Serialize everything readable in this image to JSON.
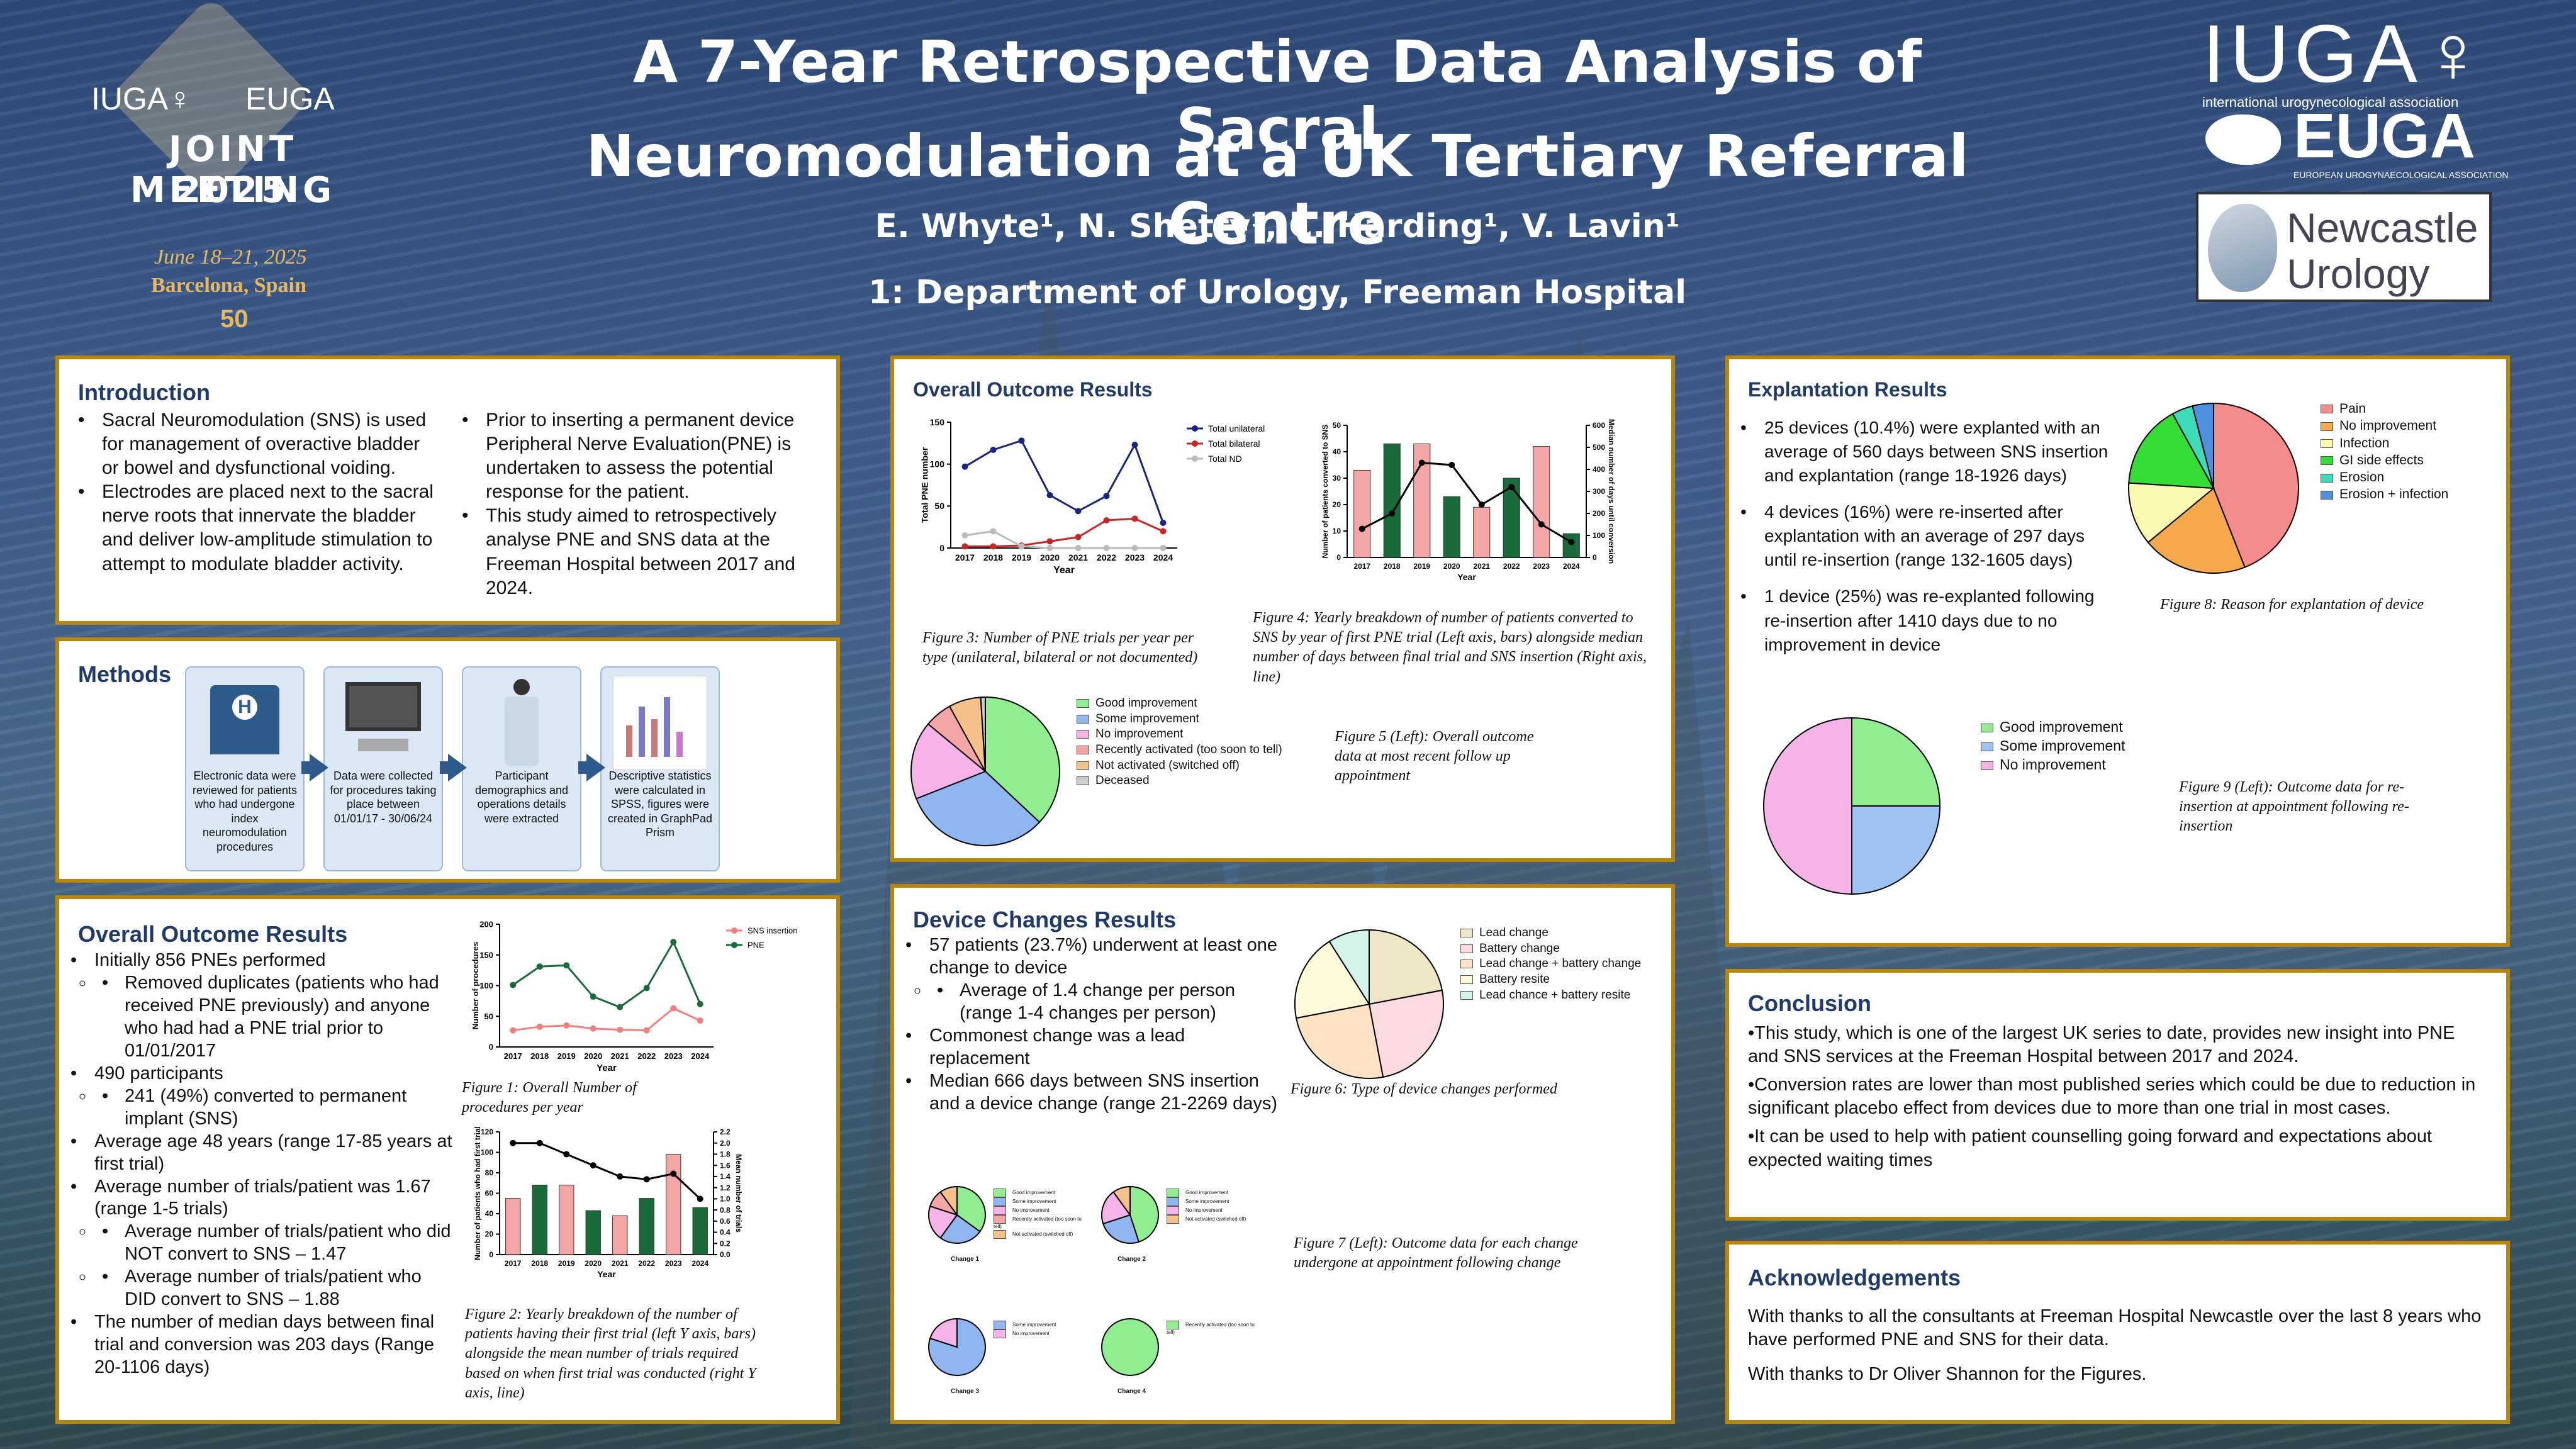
{
  "header": {
    "title_line1": "A 7-Year Retrospective Data Analysis of Sacral",
    "title_line2": "Neuromodulation at a UK Tertiary Referral Centre",
    "authors": "E. Whyte¹, N. Shetty¹, C. Harding¹, V. Lavin¹",
    "affiliation": "1: Department of Urology, Freeman Hospital"
  },
  "logo_left": {
    "org1": "IUGA♀",
    "org2": "EUGA",
    "line1": "JOINT MEETING",
    "line2": "2025",
    "date": "June 18–21, 2025",
    "place": "Barcelona, Spain",
    "anniv": "50"
  },
  "logo_right": {
    "iuga": "IUGA♀",
    "iuga_sub": "international urogynecological association",
    "euga": "EUGA",
    "euga_sub": "EUROPEAN UROGYNAECOLOGICAL ASSOCIATION",
    "newcastle1": "Newcastle",
    "newcastle2": "Urology"
  },
  "introduction": {
    "heading": "Introduction",
    "items": [
      "Sacral Neuromodulation (SNS) is used for management of overactive bladder or bowel and dysfunctional voiding.",
      "Electrodes are placed next to the sacral nerve roots that innervate the bladder and deliver low-amplitude stimulation to attempt to modulate bladder activity.",
      "Prior to inserting a permanent device Peripheral Nerve Evaluation(PNE) is undertaken to assess the potential response for the patient.",
      "This study aimed to retrospectively analyse PNE and SNS data at the Freeman Hospital between 2017 and 2024."
    ]
  },
  "methods": {
    "heading": "Methods",
    "steps": [
      "Electronic data were reviewed for patients who had undergone index neuromodulation procedures",
      "Data were collected for procedures taking place between 01/01/17 - 30/06/24",
      "Participant demographics and operations details were extracted",
      "Descriptive statistics were calculated in SPSS, figures were created in GraphPad Prism"
    ]
  },
  "overall_left": {
    "heading": "Overall Outcome Results",
    "items": [
      {
        "t": "Initially 856 PNEs performed",
        "sub": [
          "Removed duplicates (patients who had received PNE previously) and anyone who had had a PNE trial prior to 01/01/2017"
        ]
      },
      {
        "t": "490 participants",
        "sub": [
          "241 (49%) converted to permanent implant (SNS)"
        ]
      },
      {
        "t": "Average age 48 years (range 17-85 years at first trial)",
        "sub": []
      },
      {
        "t": "Average number of trials/patient was 1.67 (range 1-5 trials)",
        "sub": [
          "Average number of trials/patient who did NOT convert to SNS – 1.47",
          "Average number of trials/patient who DID convert to SNS – 1.88"
        ]
      },
      {
        "t": "The number of median days between final trial and conversion was 203 days (Range 20-1106 days)",
        "sub": []
      }
    ],
    "fig1_caption": "Figure 1: Overall Number of procedures per year",
    "fig2_caption": "Figure 2: Yearly breakdown of the number of patients having their first trial (left Y axis, bars) alongside the mean number of trials required based on when first trial was conducted (right Y axis, line)"
  },
  "overall_mid": {
    "heading": "Overall Outcome Results",
    "fig3_caption": "Figure 3: Number of PNE trials per year per type (unilateral, bilateral or not documented)",
    "fig4_caption": "Figure 4: Yearly breakdown of number of patients converted to SNS by year of first PNE trial (Left axis, bars) alongside median number of days between final trial and SNS insertion (Right axis, line)",
    "fig5_caption": "Figure 5 (Left): Overall outcome data at most recent follow up appointment"
  },
  "device": {
    "heading": "Device Changes Results",
    "items": [
      {
        "t": "57 patients (23.7%) underwent at least one change to device",
        "sub": [
          "Average of 1.4 change per person (range 1-4 changes per person)"
        ]
      },
      {
        "t": "Commonest change was a lead replacement",
        "sub": []
      },
      {
        "t": "Median 666 days between SNS insertion and a device change (range 21-2269 days)",
        "sub": []
      }
    ],
    "fig6_caption": "Figure 6: Type of device changes performed",
    "fig7_caption": "Figure 7 (Left): Outcome data for each change undergone at appointment following change",
    "change_labels": [
      "Change 1",
      "Change 2",
      "Change 3",
      "Change 4"
    ]
  },
  "explant": {
    "heading": "Explantation Results",
    "items": [
      "25 devices (10.4%) were explanted with an average of 560 days between SNS insertion and explantation (range 18-1926 days)",
      "4 devices (16%) were re-inserted after explantation with an average of 297 days until re-insertion (range 132-1605 days)",
      "1 device (25%) was re-explanted following re-insertion after 1410 days due to no improvement in device"
    ],
    "fig8_caption": "Figure 8: Reason for explantation of device",
    "fig9_caption": "Figure 9 (Left): Outcome data for re-insertion at appointment following re-insertion"
  },
  "conclusion": {
    "heading": "Conclusion",
    "items": [
      "•This study, which is one of the largest UK series to date, provides new insight into PNE and SNS services at the Freeman Hospital between 2017 and 2024.",
      "•Conversion rates are lower than most published series which could be due to reduction in significant placebo effect from devices due to more than one trial in most cases.",
      "•It can be used to help with patient counselling going forward and expectations about expected waiting times"
    ]
  },
  "ack": {
    "heading": "Acknowledgements",
    "items": [
      "With thanks to all the consultants at Freeman Hospital Newcastle over the last 8 years who have performed PNE and SNS for their data.",
      "With thanks to Dr Oliver Shannon for the Figures."
    ]
  },
  "colors": {
    "border": "#b8860b",
    "heading": "#1f3a6b",
    "bg": "#3f5d8c"
  },
  "chart_data": [
    {
      "id": "fig1",
      "type": "line",
      "x": [
        "2017",
        "2018",
        "2019",
        "2020",
        "2021",
        "2022",
        "2023",
        "2024"
      ],
      "series": [
        {
          "name": "SNS insertion",
          "values": [
            27,
            33,
            35,
            30,
            28,
            27,
            63,
            43
          ],
          "color": "#f08080"
        },
        {
          "name": "PNE",
          "values": [
            101,
            131,
            133,
            82,
            65,
            96,
            171,
            70
          ],
          "color": "#1a6b3a"
        }
      ],
      "xlabel": "Year",
      "ylabel": "Number of procedures",
      "ylim": [
        0,
        200
      ],
      "yticks": [
        0,
        50,
        100,
        150,
        200
      ]
    },
    {
      "id": "fig2",
      "type": "bar",
      "categories": [
        "2017",
        "2018",
        "2019",
        "2020",
        "2021",
        "2022",
        "2023",
        "2024"
      ],
      "values": [
        55,
        68,
        68,
        43,
        38,
        55,
        98,
        46
      ],
      "line": [
        2.0,
        2.0,
        1.8,
        1.6,
        1.4,
        1.35,
        1.45,
        1.0
      ],
      "xlabel": "Year",
      "ylabel": "Number of patients who had first trial",
      "y2label": "Mean number of trials",
      "ylim": [
        0,
        120
      ],
      "yticks": [
        0,
        20,
        40,
        60,
        80,
        100,
        120
      ],
      "y2lim": [
        0,
        2.2
      ],
      "y2ticks": [
        "0.0",
        "0.2",
        "0.4",
        "0.6",
        "0.8",
        "1.0",
        "1.2",
        "1.4",
        "1.6",
        "1.8",
        "2.0",
        "2.2"
      ]
    },
    {
      "id": "fig3",
      "type": "line",
      "x": [
        "2017",
        "2018",
        "2019",
        "2020",
        "2021",
        "2022",
        "2023",
        "2024"
      ],
      "series": [
        {
          "name": "Total unilateral",
          "values": [
            97,
            117,
            128,
            63,
            44,
            62,
            123,
            30
          ],
          "color": "#1a237e"
        },
        {
          "name": "Total bilateral",
          "values": [
            2,
            2,
            3,
            8,
            13,
            33,
            35,
            20
          ],
          "color": "#c62828"
        },
        {
          "name": "Total ND",
          "values": [
            15,
            20,
            2,
            0,
            0,
            0,
            0,
            0
          ],
          "color": "#bbbbbb"
        }
      ],
      "xlabel": "Year",
      "ylabel": "Total PNE number",
      "ylim": [
        0,
        150
      ],
      "yticks": [
        0,
        50,
        100,
        150
      ]
    },
    {
      "id": "fig4",
      "type": "bar",
      "categories": [
        "2017",
        "2018",
        "2019",
        "2020",
        "2021",
        "2022",
        "2023",
        "2024"
      ],
      "values": [
        33,
        43,
        43,
        23,
        19,
        30,
        42,
        9
      ],
      "bar_colors": [
        "#f4a6a6",
        "#1a6b3a",
        "#f4a6a6",
        "#1a6b3a",
        "#f4a6a6",
        "#1a6b3a",
        "#f4a6a6",
        "#1a6b3a"
      ],
      "line": [
        130,
        200,
        430,
        420,
        240,
        320,
        150,
        70
      ],
      "xlabel": "Year",
      "ylabel": "Number of patients converted to SNS",
      "y2label": "Median number of days until conversion",
      "ylim": [
        0,
        50
      ],
      "yticks": [
        0,
        10,
        20,
        30,
        40,
        50
      ],
      "y2lim": [
        0,
        600
      ],
      "y2ticks": [
        0,
        100,
        200,
        300,
        400,
        500,
        600
      ]
    },
    {
      "id": "fig5",
      "type": "pie",
      "labels": [
        "Good improvement",
        "Some improvement",
        "No improvement",
        "Recently activated (too soon to tell)",
        "Not activated (switched off)",
        "Deceased"
      ],
      "values": [
        37,
        32,
        17,
        6,
        7,
        1
      ],
      "colors": [
        "#90ee90",
        "#8fb6f0",
        "#f5b3e8",
        "#f4a6a6",
        "#f5c08a",
        "#cccccc"
      ]
    },
    {
      "id": "fig6",
      "type": "pie",
      "labels": [
        "Lead change",
        "Battery change",
        "Lead change + battery change",
        "Battery resite",
        "Lead chance + battery resite"
      ],
      "values": [
        22,
        25,
        25,
        19,
        9
      ],
      "colors": [
        "#efe6c6",
        "#fbdbe0",
        "#fde2c4",
        "#fdfbd9",
        "#d4f4ea"
      ]
    },
    {
      "id": "fig7a",
      "type": "pie",
      "labels": [
        "Good improvement",
        "Some improvement",
        "No improvement",
        "Recently activated (too soon to tell)",
        "Not activated (switched off)"
      ],
      "values": [
        35,
        25,
        20,
        10,
        10
      ],
      "colors": [
        "#90ee90",
        "#8fb6f0",
        "#f5b3e8",
        "#f4a6a6",
        "#f5c08a"
      ]
    },
    {
      "id": "fig7b",
      "type": "pie",
      "labels": [
        "Good improvement",
        "Some improvement",
        "No improvement",
        "Not activated (switched off)"
      ],
      "values": [
        45,
        25,
        20,
        10
      ],
      "colors": [
        "#90ee90",
        "#8fb6f0",
        "#f5b3e8",
        "#f5c08a"
      ]
    },
    {
      "id": "fig7c",
      "type": "pie",
      "labels": [
        "Some improvement",
        "No improvement"
      ],
      "values": [
        80,
        20
      ],
      "colors": [
        "#8fb6f0",
        "#f5b3e8"
      ]
    },
    {
      "id": "fig7d",
      "type": "pie",
      "labels": [
        "Recently activated (too soon to tell)"
      ],
      "values": [
        100
      ],
      "colors": [
        "#90ee90"
      ]
    },
    {
      "id": "fig8",
      "type": "pie",
      "labels": [
        "Pain",
        "No improvement",
        "Infection",
        "GI side effects",
        "Erosion",
        "Erosion + infection"
      ],
      "values": [
        44,
        20,
        12,
        16,
        4,
        4
      ],
      "colors": [
        "#f58c8c",
        "#f6a94a",
        "#fafab0",
        "#33dd33",
        "#3ddbb8",
        "#4f90e0"
      ]
    },
    {
      "id": "fig9",
      "type": "pie",
      "labels": [
        "Good improvement",
        "Some improvement",
        "No improvement"
      ],
      "values": [
        25,
        25,
        50
      ],
      "colors": [
        "#90ee90",
        "#9ec2f2",
        "#f5b3e8"
      ]
    }
  ]
}
